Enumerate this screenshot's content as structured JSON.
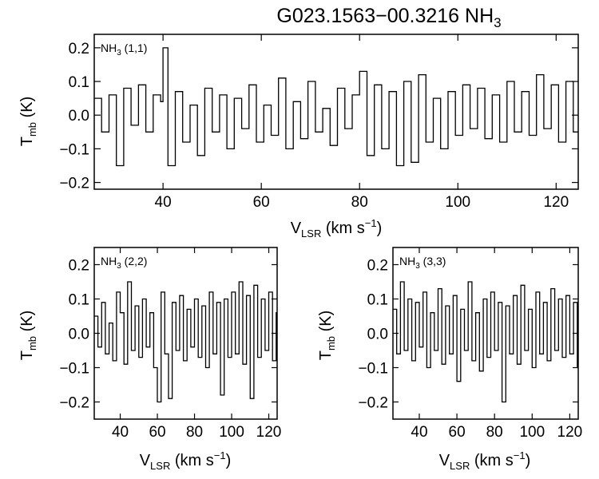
{
  "title": {
    "main": "G023.1563−00.3216 NH",
    "sub": "3"
  },
  "chart_data": [
    {
      "type": "line",
      "label": {
        "main": "NH",
        "sub": "3",
        "suffix": " (1,1)"
      },
      "xlabel": {
        "main": "V",
        "sub": "LSR",
        "suffix": " (km s",
        "sup": "−1",
        "end": ")"
      },
      "ylabel": {
        "main": "T",
        "sub": "mb",
        "suffix": " (K)"
      },
      "xlim": [
        26,
        124.5
      ],
      "ylim": [
        -0.22,
        0.24
      ],
      "xticks": [
        40,
        60,
        80,
        100,
        120
      ],
      "yticks": [
        -0.2,
        -0.1,
        0.0,
        0.1,
        0.2
      ],
      "ytick_labels": [
        "−0.2",
        "−0.1",
        "0.0",
        "0.1",
        "0.2"
      ],
      "series": [
        {
          "x": [
            26.0,
            27.5,
            29.0,
            30.5,
            32.0,
            33.5,
            35.0,
            36.5,
            38.0,
            39.5,
            40.0,
            41.0,
            42.5,
            44.0,
            45.5,
            47.0,
            48.5,
            50.0,
            51.5,
            53.0,
            54.5,
            56.0,
            57.5,
            59.0,
            60.5,
            62.0,
            63.5,
            65.0,
            66.5,
            68.0,
            69.5,
            71.0,
            72.5,
            74.0,
            75.5,
            77.0,
            78.5,
            80.0,
            81.5,
            83.0,
            84.5,
            86.0,
            87.5,
            89.0,
            90.5,
            92.0,
            93.5,
            95.0,
            96.5,
            98.0,
            99.5,
            101.0,
            102.5,
            104.0,
            105.5,
            107.0,
            108.5,
            110.0,
            111.5,
            113.0,
            114.5,
            116.0,
            117.5,
            119.0,
            120.5,
            122.0,
            123.5
          ],
          "values": [
            0.05,
            -0.05,
            0.06,
            -0.15,
            0.08,
            -0.03,
            0.09,
            -0.05,
            0.06,
            0.04,
            0.2,
            -0.15,
            0.07,
            -0.08,
            0.03,
            -0.12,
            0.08,
            -0.05,
            0.06,
            -0.1,
            0.05,
            -0.04,
            0.09,
            -0.08,
            0.03,
            -0.06,
            0.11,
            -0.1,
            0.04,
            -0.07,
            0.1,
            -0.05,
            0.02,
            -0.09,
            0.08,
            -0.04,
            0.06,
            0.13,
            -0.12,
            0.09,
            -0.1,
            0.07,
            -0.15,
            0.1,
            -0.14,
            0.12,
            -0.08,
            0.05,
            -0.1,
            0.07,
            -0.06,
            0.09,
            -0.04,
            0.08,
            -0.07,
            0.06,
            -0.08,
            0.1,
            -0.05,
            0.07,
            -0.06,
            0.12,
            -0.04,
            0.09,
            -0.08,
            0.1,
            -0.05
          ]
        }
      ]
    },
    {
      "type": "line",
      "label": {
        "main": "NH",
        "sub": "3",
        "suffix": " (2,2)"
      },
      "xlabel": {
        "main": "V",
        "sub": "LSR",
        "suffix": " (km s",
        "sup": "−1",
        "end": ")"
      },
      "ylabel": {
        "main": "T",
        "sub": "mb",
        "suffix": " (K)"
      },
      "xlim": [
        26,
        124.5
      ],
      "ylim": [
        -0.25,
        0.25
      ],
      "xticks": [
        40,
        60,
        80,
        100,
        120
      ],
      "yticks": [
        -0.2,
        -0.1,
        0.0,
        0.1,
        0.2
      ],
      "ytick_labels": [
        "−0.2",
        "−0.1",
        "0.0",
        "0.1",
        "0.2"
      ],
      "series": [
        {
          "x": [
            26,
            28,
            30,
            32,
            34,
            36,
            38,
            40,
            42,
            44,
            46,
            48,
            50,
            52,
            54,
            56,
            58,
            60,
            62,
            64,
            66,
            68,
            70,
            72,
            74,
            76,
            78,
            80,
            82,
            84,
            86,
            88,
            90,
            92,
            94,
            96,
            98,
            100,
            102,
            104,
            106,
            108,
            110,
            112,
            114,
            116,
            118,
            120,
            122,
            124
          ],
          "values": [
            0.05,
            -0.04,
            0.09,
            -0.06,
            0.03,
            -0.08,
            0.12,
            0.06,
            -0.09,
            0.15,
            -0.05,
            0.08,
            -0.07,
            0.1,
            -0.04,
            0.06,
            -0.1,
            -0.2,
            0.12,
            -0.06,
            -0.19,
            0.09,
            -0.05,
            0.11,
            -0.08,
            0.07,
            -0.04,
            0.1,
            -0.07,
            0.08,
            -0.1,
            0.12,
            -0.06,
            0.09,
            -0.18,
            0.1,
            -0.07,
            0.12,
            -0.06,
            0.15,
            -0.09,
            0.11,
            -0.19,
            0.14,
            -0.07,
            0.1,
            -0.05,
            0.12,
            -0.08,
            0.06
          ]
        }
      ]
    },
    {
      "type": "line",
      "label": {
        "main": "NH",
        "sub": "3",
        "suffix": " (3,3)"
      },
      "xlabel": {
        "main": "V",
        "sub": "LSR",
        "suffix": " (km s",
        "sup": "−1",
        "end": ")"
      },
      "ylabel": {
        "main": "T",
        "sub": "mb",
        "suffix": " (K)"
      },
      "xlim": [
        26,
        124.5
      ],
      "ylim": [
        -0.25,
        0.25
      ],
      "xticks": [
        40,
        60,
        80,
        100,
        120
      ],
      "yticks": [
        -0.2,
        -0.1,
        0.0,
        0.1,
        0.2
      ],
      "ytick_labels": [
        "−0.2",
        "−0.1",
        "0.0",
        "0.1",
        "0.2"
      ],
      "series": [
        {
          "x": [
            26,
            28,
            30,
            32,
            34,
            36,
            38,
            40,
            42,
            44,
            46,
            48,
            50,
            52,
            54,
            56,
            58,
            60,
            62,
            64,
            66,
            68,
            70,
            72,
            74,
            76,
            78,
            80,
            82,
            84,
            86,
            88,
            90,
            92,
            94,
            96,
            98,
            100,
            102,
            104,
            106,
            108,
            110,
            112,
            114,
            116,
            118,
            120,
            122,
            124
          ],
          "values": [
            0.07,
            -0.06,
            0.15,
            -0.05,
            0.1,
            -0.08,
            0.09,
            -0.04,
            0.12,
            -0.1,
            0.06,
            -0.05,
            0.13,
            -0.09,
            0.08,
            -0.06,
            0.11,
            -0.14,
            0.07,
            -0.05,
            0.15,
            -0.08,
            0.06,
            -0.11,
            0.1,
            -0.07,
            0.12,
            -0.05,
            0.09,
            -0.2,
            0.08,
            -0.06,
            0.11,
            -0.09,
            0.14,
            -0.05,
            0.07,
            -0.1,
            0.12,
            -0.06,
            0.09,
            -0.08,
            0.13,
            -0.05,
            0.1,
            -0.07,
            0.11,
            -0.06,
            0.09,
            -0.1
          ]
        }
      ]
    }
  ]
}
